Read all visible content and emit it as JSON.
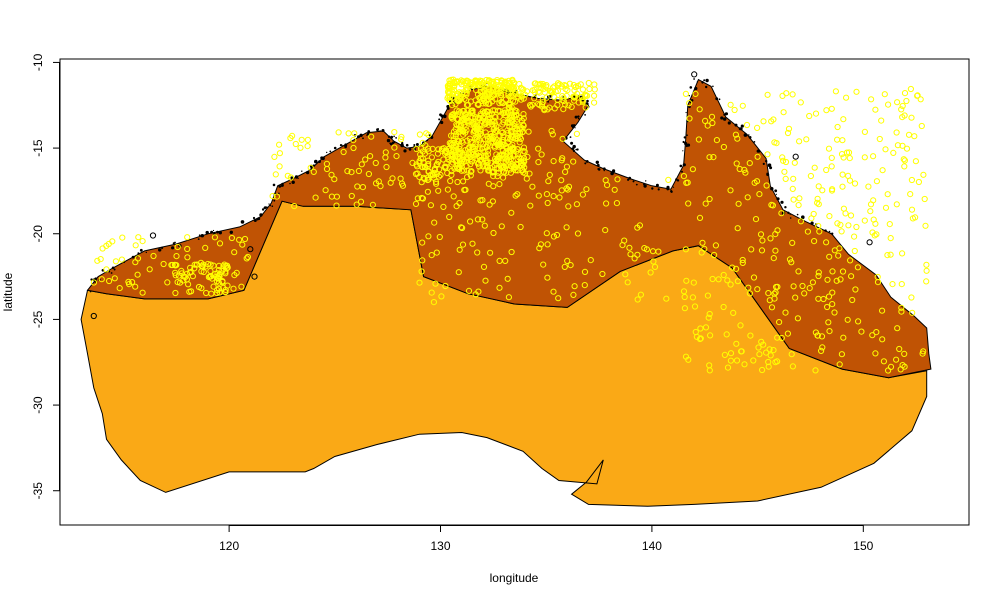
{
  "chart_data": {
    "type": "scatter",
    "title": "",
    "xlabel": "longitude",
    "ylabel": "latitude",
    "xlim": [
      112,
      155
    ],
    "ylim": [
      -37,
      -9.8
    ],
    "x_ticks": [
      120,
      130,
      140,
      150
    ],
    "y_ticks": [
      -10,
      -15,
      -20,
      -25,
      -30,
      -35
    ],
    "x_tick_labels": [
      "120",
      "130",
      "140",
      "150"
    ],
    "y_tick_labels": [
      "-10",
      "-15",
      "-20",
      "-25",
      "-30",
      "-35"
    ],
    "grid": false,
    "colors": {
      "outer_region": "#FAA916",
      "northern_region": "#C05304",
      "points": "#FFFF00",
      "outlier_points": "#000000",
      "coastline": "#000000"
    },
    "regions": [
      {
        "fill": "#FAA916",
        "boundary": [
          [
            113.3,
            -23.3
          ],
          [
            114.2,
            -23.5
          ],
          [
            116.0,
            -23.8
          ],
          [
            119.0,
            -23.8
          ],
          [
            120.7,
            -23.3
          ],
          [
            122.5,
            -18.1
          ],
          [
            123.5,
            -18.4
          ],
          [
            126.0,
            -18.4
          ],
          [
            128.6,
            -18.6
          ],
          [
            129.2,
            -22.5
          ],
          [
            131.3,
            -23.5
          ],
          [
            133.5,
            -24.1
          ],
          [
            136.0,
            -24.3
          ],
          [
            138.5,
            -22.2
          ],
          [
            141.0,
            -21.0
          ],
          [
            142.2,
            -20.7
          ],
          [
            143.8,
            -22.0
          ],
          [
            146.5,
            -26.7
          ],
          [
            149.0,
            -27.9
          ],
          [
            151.2,
            -28.4
          ],
          [
            153.0,
            -28.0
          ],
          [
            153.0,
            -29.5
          ],
          [
            152.3,
            -31.5
          ],
          [
            150.5,
            -33.4
          ],
          [
            148.0,
            -34.8
          ],
          [
            145.0,
            -35.6
          ],
          [
            142.0,
            -35.8
          ],
          [
            139.8,
            -35.9
          ],
          [
            137.0,
            -35.8
          ],
          [
            136.2,
            -35.2
          ],
          [
            136.9,
            -34.5
          ],
          [
            137.7,
            -33.2
          ],
          [
            137.4,
            -34.6
          ],
          [
            135.6,
            -34.4
          ],
          [
            134.8,
            -33.7
          ],
          [
            133.9,
            -32.7
          ],
          [
            132.2,
            -31.9
          ],
          [
            131.0,
            -31.6
          ],
          [
            129.0,
            -31.7
          ],
          [
            127.0,
            -32.3
          ],
          [
            125.0,
            -33.0
          ],
          [
            124.0,
            -33.7
          ],
          [
            123.6,
            -33.9
          ],
          [
            120.0,
            -33.9
          ],
          [
            117.0,
            -35.1
          ],
          [
            115.8,
            -34.4
          ],
          [
            114.9,
            -33.2
          ],
          [
            114.2,
            -32.0
          ],
          [
            114.0,
            -30.5
          ],
          [
            113.6,
            -29.0
          ],
          [
            113.3,
            -27.0
          ],
          [
            113.0,
            -25.0
          ]
        ]
      },
      {
        "fill": "#C05304",
        "boundary": [
          [
            113.3,
            -23.3
          ],
          [
            113.8,
            -22.5
          ],
          [
            114.5,
            -22.0
          ],
          [
            116.0,
            -21.0
          ],
          [
            117.5,
            -20.6
          ],
          [
            119.0,
            -20.0
          ],
          [
            120.5,
            -19.6
          ],
          [
            121.5,
            -19.0
          ],
          [
            122.0,
            -18.2
          ],
          [
            122.3,
            -17.2
          ],
          [
            123.0,
            -16.8
          ],
          [
            123.8,
            -16.3
          ],
          [
            124.5,
            -15.5
          ],
          [
            125.5,
            -14.8
          ],
          [
            126.5,
            -14.1
          ],
          [
            127.3,
            -14.0
          ],
          [
            127.8,
            -14.6
          ],
          [
            128.4,
            -15.0
          ],
          [
            129.0,
            -14.9
          ],
          [
            129.6,
            -14.3
          ],
          [
            130.2,
            -13.0
          ],
          [
            130.6,
            -12.1
          ],
          [
            131.4,
            -11.6
          ],
          [
            132.3,
            -11.4
          ],
          [
            133.5,
            -11.8
          ],
          [
            134.6,
            -12.1
          ],
          [
            135.7,
            -12.2
          ],
          [
            136.6,
            -12.0
          ],
          [
            137.0,
            -12.5
          ],
          [
            136.5,
            -13.5
          ],
          [
            135.8,
            -14.6
          ],
          [
            136.8,
            -15.7
          ],
          [
            137.7,
            -16.2
          ],
          [
            139.0,
            -16.8
          ],
          [
            140.0,
            -17.2
          ],
          [
            140.9,
            -17.4
          ],
          [
            141.5,
            -16.0
          ],
          [
            141.6,
            -14.5
          ],
          [
            141.7,
            -12.5
          ],
          [
            142.2,
            -11.0
          ],
          [
            142.8,
            -11.4
          ],
          [
            143.5,
            -13.2
          ],
          [
            144.5,
            -14.2
          ],
          [
            145.4,
            -15.6
          ],
          [
            145.6,
            -17.2
          ],
          [
            146.2,
            -18.6
          ],
          [
            147.3,
            -19.3
          ],
          [
            148.5,
            -20.0
          ],
          [
            149.3,
            -21.2
          ],
          [
            150.6,
            -22.4
          ],
          [
            151.3,
            -23.7
          ],
          [
            152.4,
            -24.8
          ],
          [
            153.0,
            -25.5
          ],
          [
            153.1,
            -27.0
          ],
          [
            153.2,
            -27.9
          ],
          [
            151.2,
            -28.4
          ],
          [
            149.0,
            -27.9
          ],
          [
            146.5,
            -26.7
          ],
          [
            143.8,
            -22.0
          ],
          [
            142.2,
            -20.7
          ],
          [
            141.0,
            -21.0
          ],
          [
            138.5,
            -22.2
          ],
          [
            136.0,
            -24.3
          ],
          [
            133.5,
            -24.1
          ],
          [
            131.3,
            -23.5
          ],
          [
            129.2,
            -22.5
          ],
          [
            128.6,
            -18.6
          ],
          [
            126.0,
            -18.4
          ],
          [
            123.5,
            -18.4
          ],
          [
            122.5,
            -18.1
          ],
          [
            120.7,
            -23.3
          ],
          [
            119.0,
            -23.8
          ],
          [
            116.0,
            -23.8
          ],
          [
            114.2,
            -23.5
          ]
        ]
      }
    ],
    "series": [
      {
        "style": "dense-yellow-clusters",
        "clusters": [
          {
            "x": [
              130.5,
              134.0
            ],
            "y": [
              -12.8,
              -16.5
            ],
            "n": 420
          },
          {
            "x": [
              130.3,
              133.5
            ],
            "y": [
              -11.0,
              -12.5
            ],
            "n": 200
          },
          {
            "x": [
              133.2,
              137.3
            ],
            "y": [
              -11.2,
              -12.8
            ],
            "n": 120
          },
          {
            "x": [
              117.2,
              120.0
            ],
            "y": [
              -21.8,
              -23.5
            ],
            "n": 70
          },
          {
            "x": [
              128.8,
              131.0
            ],
            "y": [
              -15.0,
              -17.0
            ],
            "n": 80
          }
        ]
      },
      {
        "style": "scattered-yellow",
        "regions": [
          {
            "x": [
              122.0,
              137.0
            ],
            "y": [
              -14.0,
              -18.5
            ],
            "n": 150
          },
          {
            "x": [
              113.5,
              121.0
            ],
            "y": [
              -20.2,
              -23.5
            ],
            "n": 60
          },
          {
            "x": [
              141.5,
              153.0
            ],
            "y": [
              -11.5,
              -28.0
            ],
            "n": 360
          },
          {
            "x": [
              129.0,
              141.0
            ],
            "y": [
              -16.5,
              -24.0
            ],
            "n": 110
          }
        ]
      },
      {
        "style": "outliers",
        "x": [
          146.8,
          150.3,
          113.6,
          116.4,
          121.2,
          142.0,
          121.0
        ],
        "y": [
          -15.5,
          -20.5,
          -24.8,
          -20.1,
          -22.5,
          -10.7,
          -20.9
        ]
      }
    ]
  }
}
